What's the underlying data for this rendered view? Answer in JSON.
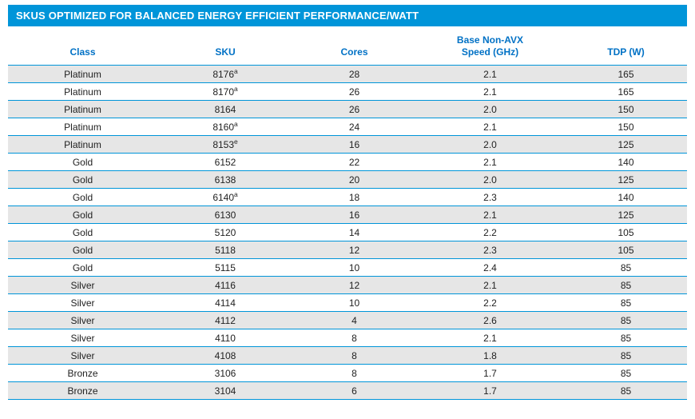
{
  "colors": {
    "header_bg": "#0095d9",
    "header_text": "#ffffff",
    "th_text": "#0071c5",
    "row_border": "#0095d9",
    "row_alt_bg": "#e6e6e6",
    "row_bg": "#ffffff",
    "cell_text": "#222222"
  },
  "title": "SKUS OPTIMIZED FOR BALANCED ENERGY EFFICIENT PERFORMANCE/WATT",
  "columns": [
    {
      "key": "class",
      "label": "Class"
    },
    {
      "key": "sku",
      "label": "SKU"
    },
    {
      "key": "cores",
      "label": "Cores"
    },
    {
      "key": "speed",
      "label": "Base Non-AVX\nSpeed (GHz)"
    },
    {
      "key": "tdp",
      "label": "TDP (W)"
    }
  ],
  "col_widths": [
    "22%",
    "20%",
    "18%",
    "22%",
    "18%"
  ],
  "rows": [
    {
      "class": "Platinum",
      "sku": "8176",
      "sku_sup": "a",
      "cores": "28",
      "speed": "2.1",
      "tdp": "165"
    },
    {
      "class": "Platinum",
      "sku": "8170",
      "sku_sup": "a",
      "cores": "26",
      "speed": "2.1",
      "tdp": "165"
    },
    {
      "class": "Platinum",
      "sku": "8164",
      "sku_sup": "",
      "cores": "26",
      "speed": "2.0",
      "tdp": "150"
    },
    {
      "class": "Platinum",
      "sku": "8160",
      "sku_sup": "a",
      "cores": "24",
      "speed": "2.1",
      "tdp": "150"
    },
    {
      "class": "Platinum",
      "sku": "8153",
      "sku_sup": "e",
      "cores": "16",
      "speed": "2.0",
      "tdp": "125"
    },
    {
      "class": "Gold",
      "sku": "6152",
      "sku_sup": "",
      "cores": "22",
      "speed": "2.1",
      "tdp": "140"
    },
    {
      "class": "Gold",
      "sku": "6138",
      "sku_sup": "",
      "cores": "20",
      "speed": "2.0",
      "tdp": "125"
    },
    {
      "class": "Gold",
      "sku": "6140",
      "sku_sup": "a",
      "cores": "18",
      "speed": "2.3",
      "tdp": "140"
    },
    {
      "class": "Gold",
      "sku": "6130",
      "sku_sup": "",
      "cores": "16",
      "speed": "2.1",
      "tdp": "125"
    },
    {
      "class": "Gold",
      "sku": "5120",
      "sku_sup": "",
      "cores": "14",
      "speed": "2.2",
      "tdp": "105"
    },
    {
      "class": "Gold",
      "sku": "5118",
      "sku_sup": "",
      "cores": "12",
      "speed": "2.3",
      "tdp": "105"
    },
    {
      "class": "Gold",
      "sku": "5115",
      "sku_sup": "",
      "cores": "10",
      "speed": "2.4",
      "tdp": "85"
    },
    {
      "class": "Silver",
      "sku": "4116",
      "sku_sup": "",
      "cores": "12",
      "speed": "2.1",
      "tdp": "85"
    },
    {
      "class": "Silver",
      "sku": "4114",
      "sku_sup": "",
      "cores": "10",
      "speed": "2.2",
      "tdp": "85"
    },
    {
      "class": "Silver",
      "sku": "4112",
      "sku_sup": "",
      "cores": "4",
      "speed": "2.6",
      "tdp": "85"
    },
    {
      "class": "Silver",
      "sku": "4110",
      "sku_sup": "",
      "cores": "8",
      "speed": "2.1",
      "tdp": "85"
    },
    {
      "class": "Silver",
      "sku": "4108",
      "sku_sup": "",
      "cores": "8",
      "speed": "1.8",
      "tdp": "85"
    },
    {
      "class": "Bronze",
      "sku": "3106",
      "sku_sup": "",
      "cores": "8",
      "speed": "1.7",
      "tdp": "85"
    },
    {
      "class": "Bronze",
      "sku": "3104",
      "sku_sup": "",
      "cores": "6",
      "speed": "1.7",
      "tdp": "85"
    }
  ]
}
